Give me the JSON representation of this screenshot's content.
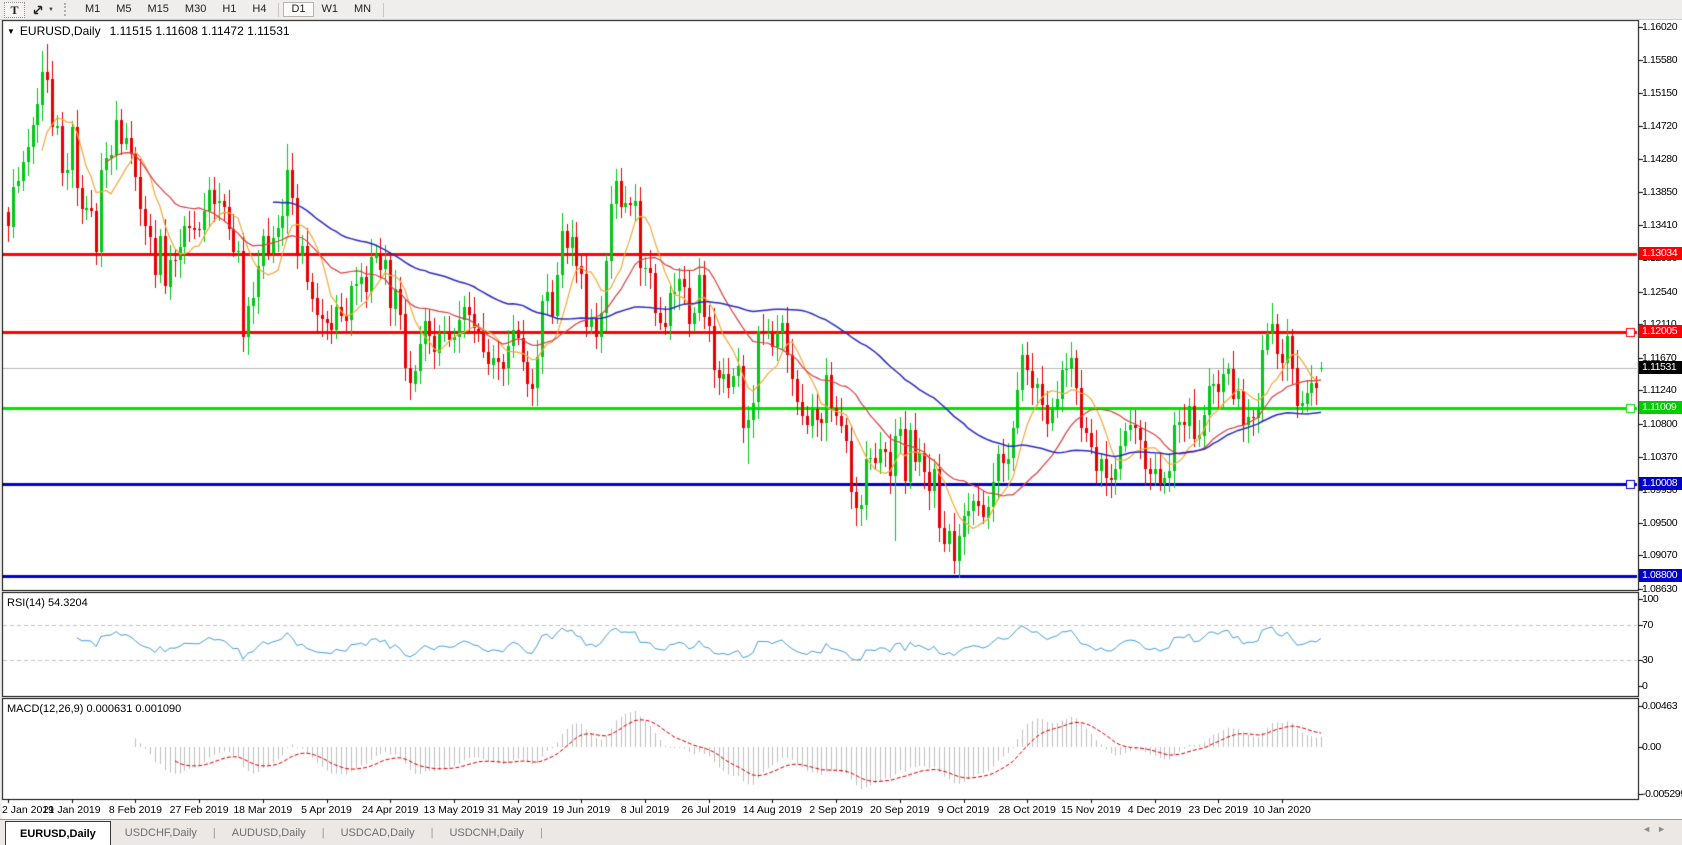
{
  "toolbar": {
    "text_tool_label": "T",
    "dropdown_caret": "▼",
    "timeframes": [
      {
        "label": "M1",
        "active": false
      },
      {
        "label": "M5",
        "active": false
      },
      {
        "label": "M15",
        "active": false
      },
      {
        "label": "M30",
        "active": false
      },
      {
        "label": "H1",
        "active": false
      },
      {
        "label": "H4",
        "active": false
      },
      {
        "label": "D1",
        "active": true
      },
      {
        "label": "W1",
        "active": false
      },
      {
        "label": "MN",
        "active": false
      }
    ]
  },
  "main": {
    "caret": "▼",
    "symbol": "EURUSD,Daily",
    "ohlc": "1.11515 1.11608 1.11472 1.11531"
  },
  "price_axis": {
    "ticks": [
      {
        "label": "1.16020",
        "price": 1.1602
      },
      {
        "label": "1.15580",
        "price": 1.1558
      },
      {
        "label": "1.15150",
        "price": 1.1515
      },
      {
        "label": "1.14720",
        "price": 1.1472
      },
      {
        "label": "1.14280",
        "price": 1.1428
      },
      {
        "label": "1.13850",
        "price": 1.1385
      },
      {
        "label": "1.13410",
        "price": 1.1341
      },
      {
        "label": "1.12980",
        "price": 1.1298
      },
      {
        "label": "1.12540",
        "price": 1.1254
      },
      {
        "label": "1.12110",
        "price": 1.1211
      },
      {
        "label": "1.11670",
        "price": 1.1167
      },
      {
        "label": "1.11240",
        "price": 1.1124
      },
      {
        "label": "1.10800",
        "price": 1.108
      },
      {
        "label": "1.10370",
        "price": 1.1037
      },
      {
        "label": "1.09930",
        "price": 1.0993
      },
      {
        "label": "1.09500",
        "price": 1.095
      },
      {
        "label": "1.09070",
        "price": 1.0907
      },
      {
        "label": "1.08630",
        "price": 1.0863
      }
    ]
  },
  "hlines": [
    {
      "price": 1.13034,
      "label": "1.13034",
      "color": "#FF0000",
      "label_bg": "#FF0000",
      "thickness": 3,
      "handle": false
    },
    {
      "price": 1.12005,
      "label": "1.12005",
      "color": "#FF0000",
      "label_bg": "#FF0000",
      "thickness": 3,
      "handle": true
    },
    {
      "price": 1.11531,
      "label": "1.11531",
      "color": "#B8B8B8",
      "label_bg": "#000000",
      "thickness": 1,
      "handle": false,
      "role": "current-price"
    },
    {
      "price": 1.11009,
      "label": "1.11009",
      "color": "#00E400",
      "label_bg": "#00CC00",
      "thickness": 3,
      "handle": true
    },
    {
      "price": 1.10008,
      "label": "1.10008",
      "color": "#0000C8",
      "label_bg": "#0000C8",
      "thickness": 3,
      "handle": true
    },
    {
      "price": 1.088,
      "label": "1.08800",
      "color": "#0000C8",
      "label_bg": "#0000C8",
      "thickness": 3,
      "handle": false
    }
  ],
  "rsi": {
    "label": "RSI(14) 54.3204",
    "ticks": [
      {
        "label": "100",
        "value": 100
      },
      {
        "label": "70",
        "value": 70
      },
      {
        "label": "30",
        "value": 30
      },
      {
        "label": "0",
        "value": 0
      }
    ],
    "levels": [
      70,
      30
    ],
    "line_color": "#4A9EDA"
  },
  "macd": {
    "label": "MACD(12,26,9) 0.000631 0.001090",
    "ticks": [
      {
        "label": "0.00463",
        "value": 0.00463
      },
      {
        "label": "0.00",
        "value": 0
      },
      {
        "label": "-0.005299",
        "value": -0.005299
      }
    ],
    "bar_color": "#BFBFBF",
    "signal_color": "#DD0000"
  },
  "tabs": [
    {
      "label": "EURUSD,Daily",
      "active": true
    },
    {
      "label": "USDCHF,Daily",
      "active": false
    },
    {
      "label": "AUDUSD,Daily",
      "active": false
    },
    {
      "label": "USDCAD,Daily",
      "active": false
    },
    {
      "label": "USDCNH,Daily",
      "active": false
    }
  ],
  "tabbar": {
    "left_arrow": "◄",
    "right_arrow": "►",
    "separator": "|"
  },
  "colors": {
    "bull": "#00C814",
    "bear": "#E60000",
    "pane_border": "#000000",
    "background": "#FFFFFF",
    "level_dash": "#C4C4C4"
  },
  "chart_data": {
    "type": "candlestick",
    "title": "EURUSD,Daily",
    "symbol": "EURUSD",
    "period": "Daily",
    "current_price": 1.11531,
    "last_candle_ohlc": [
      1.11515,
      1.11608,
      1.11472,
      1.11531
    ],
    "y_axis": {
      "min": 1.0863,
      "max": 1.1602,
      "tick_step": 0.0043
    },
    "x_axis_dates": [
      "2 Jan 2019",
      "21 Jan 2019",
      "8 Feb 2019",
      "27 Feb 2019",
      "18 Mar 2019",
      "5 Apr 2019",
      "24 Apr 2019",
      "13 May 2019",
      "31 May 2019",
      "19 Jun 2019",
      "8 Jul 2019",
      "26 Jul 2019",
      "14 Aug 2019",
      "2 Sep 2019",
      "20 Sep 2019",
      "9 Oct 2019",
      "28 Oct 2019",
      "15 Nov 2019",
      "4 Dec 2019",
      "23 Dec 2019",
      "10 Jan 2020"
    ],
    "candles_per_label": 13,
    "first_open": 1.1358,
    "closes": [
      1.134,
      1.1392,
      1.1399,
      1.1424,
      1.1444,
      1.1473,
      1.15,
      1.1543,
      1.1533,
      1.147,
      1.1472,
      1.141,
      1.1414,
      1.147,
      1.139,
      1.1362,
      1.1364,
      1.136,
      1.1306,
      1.1414,
      1.143,
      1.1434,
      1.148,
      1.1448,
      1.1456,
      1.1435,
      1.1405,
      1.1363,
      1.134,
      1.1325,
      1.1276,
      1.1327,
      1.1261,
      1.1296,
      1.1295,
      1.1312,
      1.134,
      1.1338,
      1.1336,
      1.1335,
      1.136,
      1.1388,
      1.137,
      1.1373,
      1.1365,
      1.1336,
      1.1306,
      1.1307,
      1.1194,
      1.1235,
      1.1246,
      1.1287,
      1.1327,
      1.1305,
      1.1325,
      1.1337,
      1.1353,
      1.1414,
      1.1377,
      1.1301,
      1.1314,
      1.1267,
      1.1245,
      1.1223,
      1.1218,
      1.1213,
      1.1204,
      1.1234,
      1.1222,
      1.1216,
      1.1261,
      1.1264,
      1.1273,
      1.1253,
      1.1299,
      1.1304,
      1.1283,
      1.1295,
      1.1232,
      1.1258,
      1.1224,
      1.1153,
      1.1133,
      1.115,
      1.1185,
      1.1215,
      1.1195,
      1.1174,
      1.12,
      1.1201,
      1.119,
      1.1194,
      1.1217,
      1.1234,
      1.1224,
      1.1205,
      1.1202,
      1.1174,
      1.1158,
      1.1167,
      1.1162,
      1.1153,
      1.1182,
      1.1203,
      1.1193,
      1.1162,
      1.1133,
      1.1127,
      1.1168,
      1.1241,
      1.1253,
      1.1222,
      1.1276,
      1.1334,
      1.1312,
      1.1326,
      1.1288,
      1.1277,
      1.1207,
      1.1219,
      1.1194,
      1.1226,
      1.1294,
      1.1369,
      1.1399,
      1.1365,
      1.137,
      1.1367,
      1.1373,
      1.1285,
      1.1285,
      1.1279,
      1.1226,
      1.1213,
      1.1208,
      1.1252,
      1.1254,
      1.127,
      1.1259,
      1.1212,
      1.1226,
      1.1276,
      1.1221,
      1.1209,
      1.1151,
      1.114,
      1.1146,
      1.1128,
      1.1143,
      1.1156,
      1.1075,
      1.1085,
      1.1108,
      1.1202,
      1.12,
      1.12,
      1.1182,
      1.12,
      1.1213,
      1.1171,
      1.1139,
      1.1109,
      1.109,
      1.1078,
      1.11,
      1.1086,
      1.1081,
      1.1144,
      1.1101,
      1.1091,
      1.1078,
      1.1057,
      1.099,
      1.0969,
      1.0974,
      1.1034,
      1.1035,
      1.1028,
      1.1047,
      1.1043,
      1.1011,
      1.1064,
      1.1073,
      1.1004,
      1.1072,
      1.103,
      1.1042,
      1.1017,
      1.0992,
      1.1021,
      1.0943,
      1.0922,
      1.0939,
      1.0899,
      1.0932,
      1.0959,
      1.0966,
      1.0979,
      1.0973,
      1.0957,
      1.0971,
      1.1004,
      1.104,
      1.1028,
      1.1034,
      1.1074,
      1.1124,
      1.117,
      1.115,
      1.1128,
      1.1133,
      1.1105,
      1.108,
      1.1099,
      1.1113,
      1.1151,
      1.1152,
      1.1166,
      1.1127,
      1.1074,
      1.1068,
      1.1049,
      1.1018,
      1.1034,
      1.1009,
      1.1006,
      1.1021,
      1.1051,
      1.1071,
      1.1078,
      1.1074,
      1.1058,
      1.1021,
      1.1014,
      1.1021,
      1.1001,
      1.1009,
      1.1018,
      1.1078,
      1.1082,
      1.1078,
      1.1104,
      1.106,
      1.1065,
      1.1092,
      1.113,
      1.1132,
      1.1121,
      1.1145,
      1.1152,
      1.1113,
      1.1123,
      1.1078,
      1.1089,
      1.1088,
      1.1098,
      1.1177,
      1.1199,
      1.1212,
      1.1172,
      1.116,
      1.1196,
      1.1153,
      1.1103,
      1.1107,
      1.1121,
      1.1134,
      1.1127,
      1.1153
    ],
    "wick_spikes": [
      {
        "i": 7,
        "high": 1.157
      },
      {
        "i": 8,
        "high": 1.158
      },
      {
        "i": 18,
        "low": 1.1289
      },
      {
        "i": 48,
        "low": 1.1177
      },
      {
        "i": 57,
        "high": 1.1448
      },
      {
        "i": 82,
        "low": 1.1111
      },
      {
        "i": 124,
        "high": 1.1412
      },
      {
        "i": 150,
        "low": 1.106
      },
      {
        "i": 151,
        "low": 1.1027
      },
      {
        "i": 181,
        "low": 1.0927,
        "high": 1.1087
      },
      {
        "i": 194,
        "low": 1.0879
      },
      {
        "i": 258,
        "high": 1.1239
      }
    ],
    "horizontal_levels": [
      1.13034,
      1.12005,
      1.11009,
      1.10008,
      1.088
    ],
    "moving_averages": [
      {
        "period": 8,
        "color": "#F2A93B"
      },
      {
        "period": 21,
        "color": "#D84040"
      },
      {
        "period": 55,
        "color": "#2A2AC0"
      }
    ],
    "indicators": [
      {
        "name": "RSI",
        "period": 14,
        "value": 54.3204,
        "levels": [
          70,
          30
        ]
      },
      {
        "name": "MACD",
        "fast": 12,
        "slow": 26,
        "signal": 9,
        "values": [
          0.000631,
          0.00109
        ],
        "y_ticks": [
          0.00463,
          0,
          -0.005299
        ]
      }
    ]
  }
}
